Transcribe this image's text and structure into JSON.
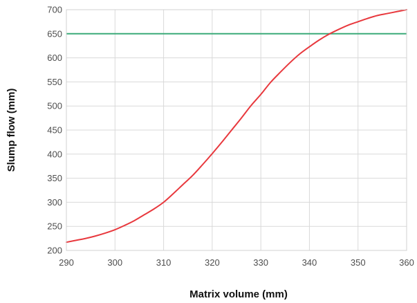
{
  "chart_data": {
    "type": "line",
    "xlabel": "Matrix volume (mm)",
    "ylabel": "Slump flow (mm)",
    "xlim": [
      290,
      360
    ],
    "ylim": [
      200,
      700
    ],
    "x_ticks": [
      290,
      300,
      310,
      320,
      330,
      340,
      350,
      360
    ],
    "y_ticks": [
      200,
      250,
      300,
      350,
      400,
      450,
      500,
      550,
      600,
      650,
      700
    ],
    "grid": true,
    "series": [
      {
        "color": "#e8383d",
        "x": [
          290,
          292,
          294,
          296,
          298,
          300,
          302,
          304,
          306,
          308,
          310,
          312,
          314,
          316,
          318,
          320,
          322,
          324,
          326,
          328,
          330,
          332,
          334,
          336,
          338,
          340,
          342,
          344,
          346,
          348,
          350,
          352,
          354,
          356,
          358,
          360
        ],
        "y": [
          217,
          221,
          225,
          230,
          236,
          243,
          252,
          262,
          274,
          286,
          300,
          318,
          337,
          356,
          378,
          401,
          425,
          450,
          475,
          501,
          524,
          549,
          570,
          590,
          608,
          623,
          637,
          649,
          659,
          668,
          675,
          682,
          688,
          692,
          696,
          700
        ]
      }
    ],
    "reference_line": {
      "y": 650,
      "color": "#3aaa78"
    }
  }
}
